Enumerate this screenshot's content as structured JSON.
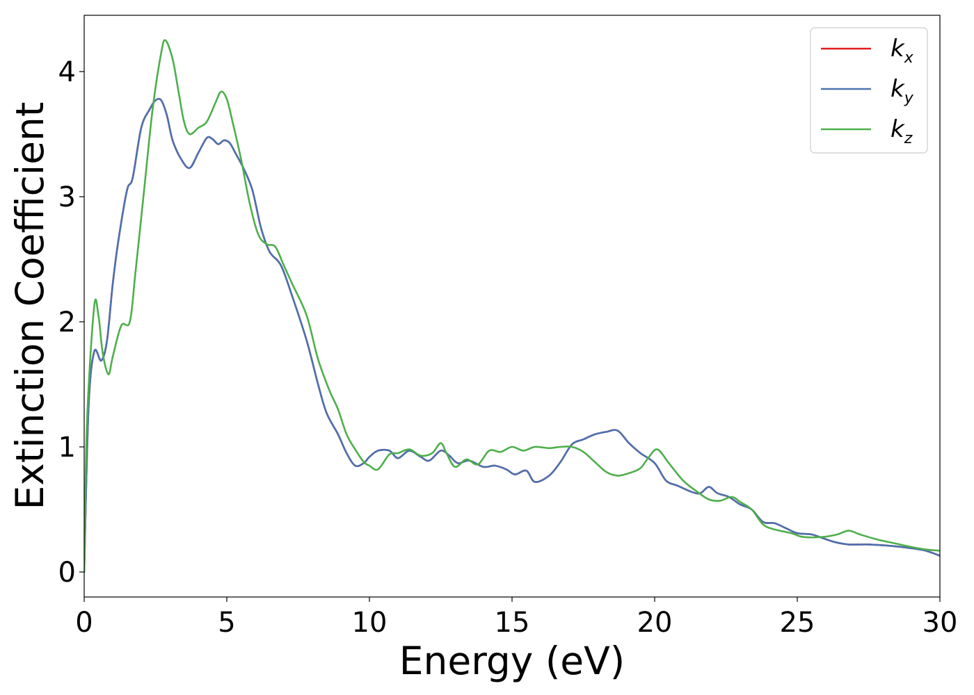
{
  "chart_data": {
    "type": "line",
    "title": "",
    "xlabel": "Energy (eV)",
    "ylabel": "Extinction Coefficient",
    "xlim": [
      0,
      30
    ],
    "ylim": [
      -0.2,
      4.45
    ],
    "xticks": [
      0,
      5,
      10,
      15,
      20,
      25,
      30
    ],
    "yticks": [
      0,
      1,
      2,
      3,
      4
    ],
    "xtick_labels": [
      "0",
      "5",
      "10",
      "15",
      "20",
      "25",
      "30"
    ],
    "ytick_labels": [
      "0",
      "1",
      "2",
      "3",
      "4"
    ],
    "grid": false,
    "legend_position": "top-right",
    "series": [
      {
        "name": "k_x",
        "legend_main": "k",
        "legend_sub": "x",
        "color": "#e41a1c",
        "points": [
          [
            0,
            0
          ],
          [
            0.15,
            1.3
          ],
          [
            0.35,
            1.76
          ],
          [
            0.6,
            1.69
          ],
          [
            0.8,
            1.85
          ],
          [
            1.0,
            2.3
          ],
          [
            1.2,
            2.65
          ],
          [
            1.5,
            3.05
          ],
          [
            1.7,
            3.15
          ],
          [
            2.0,
            3.55
          ],
          [
            2.3,
            3.7
          ],
          [
            2.5,
            3.77
          ],
          [
            2.7,
            3.77
          ],
          [
            2.9,
            3.65
          ],
          [
            3.1,
            3.45
          ],
          [
            3.4,
            3.3
          ],
          [
            3.7,
            3.23
          ],
          [
            4.0,
            3.35
          ],
          [
            4.3,
            3.47
          ],
          [
            4.5,
            3.46
          ],
          [
            4.7,
            3.42
          ],
          [
            4.9,
            3.45
          ],
          [
            5.1,
            3.43
          ],
          [
            5.3,
            3.35
          ],
          [
            5.6,
            3.22
          ],
          [
            5.9,
            3.05
          ],
          [
            6.2,
            2.75
          ],
          [
            6.5,
            2.56
          ],
          [
            6.9,
            2.45
          ],
          [
            7.3,
            2.2
          ],
          [
            7.8,
            1.85
          ],
          [
            8.2,
            1.5
          ],
          [
            8.5,
            1.27
          ],
          [
            8.9,
            1.1
          ],
          [
            9.2,
            0.95
          ],
          [
            9.5,
            0.85
          ],
          [
            9.8,
            0.87
          ],
          [
            10.0,
            0.92
          ],
          [
            10.3,
            0.97
          ],
          [
            10.7,
            0.97
          ],
          [
            11.0,
            0.91
          ],
          [
            11.4,
            0.97
          ],
          [
            11.8,
            0.92
          ],
          [
            12.1,
            0.89
          ],
          [
            12.5,
            0.97
          ],
          [
            12.8,
            0.93
          ],
          [
            13.1,
            0.87
          ],
          [
            13.5,
            0.89
          ],
          [
            14.0,
            0.84
          ],
          [
            14.4,
            0.85
          ],
          [
            14.8,
            0.82
          ],
          [
            15.1,
            0.78
          ],
          [
            15.5,
            0.81
          ],
          [
            15.8,
            0.72
          ],
          [
            16.3,
            0.77
          ],
          [
            16.7,
            0.88
          ],
          [
            17.1,
            1.02
          ],
          [
            17.5,
            1.06
          ],
          [
            17.9,
            1.1
          ],
          [
            18.3,
            1.12
          ],
          [
            18.7,
            1.13
          ],
          [
            19.1,
            1.03
          ],
          [
            19.5,
            0.95
          ],
          [
            20.0,
            0.87
          ],
          [
            20.4,
            0.73
          ],
          [
            20.8,
            0.69
          ],
          [
            21.3,
            0.64
          ],
          [
            21.6,
            0.63
          ],
          [
            21.9,
            0.68
          ],
          [
            22.2,
            0.63
          ],
          [
            22.6,
            0.6
          ],
          [
            23.0,
            0.54
          ],
          [
            23.4,
            0.5
          ],
          [
            23.8,
            0.4
          ],
          [
            24.2,
            0.39
          ],
          [
            24.6,
            0.35
          ],
          [
            25.0,
            0.31
          ],
          [
            25.5,
            0.3
          ],
          [
            25.9,
            0.27
          ],
          [
            26.3,
            0.24
          ],
          [
            26.8,
            0.22
          ],
          [
            27.5,
            0.22
          ],
          [
            28.2,
            0.21
          ],
          [
            29.0,
            0.19
          ],
          [
            29.5,
            0.17
          ],
          [
            30.0,
            0.13
          ]
        ]
      },
      {
        "name": "k_y",
        "legend_main": "k",
        "legend_sub": "y",
        "color": "#4a72b0",
        "points": [
          [
            0,
            0
          ],
          [
            0.15,
            1.3
          ],
          [
            0.35,
            1.76
          ],
          [
            0.6,
            1.69
          ],
          [
            0.8,
            1.85
          ],
          [
            1.0,
            2.3
          ],
          [
            1.2,
            2.65
          ],
          [
            1.5,
            3.05
          ],
          [
            1.7,
            3.15
          ],
          [
            2.0,
            3.55
          ],
          [
            2.3,
            3.7
          ],
          [
            2.5,
            3.77
          ],
          [
            2.7,
            3.77
          ],
          [
            2.9,
            3.65
          ],
          [
            3.1,
            3.45
          ],
          [
            3.4,
            3.3
          ],
          [
            3.7,
            3.23
          ],
          [
            4.0,
            3.35
          ],
          [
            4.3,
            3.47
          ],
          [
            4.5,
            3.46
          ],
          [
            4.7,
            3.42
          ],
          [
            4.9,
            3.45
          ],
          [
            5.1,
            3.43
          ],
          [
            5.3,
            3.35
          ],
          [
            5.6,
            3.22
          ],
          [
            5.9,
            3.05
          ],
          [
            6.2,
            2.75
          ],
          [
            6.5,
            2.56
          ],
          [
            6.9,
            2.45
          ],
          [
            7.3,
            2.2
          ],
          [
            7.8,
            1.85
          ],
          [
            8.2,
            1.5
          ],
          [
            8.5,
            1.27
          ],
          [
            8.9,
            1.1
          ],
          [
            9.2,
            0.95
          ],
          [
            9.5,
            0.85
          ],
          [
            9.8,
            0.87
          ],
          [
            10.0,
            0.92
          ],
          [
            10.3,
            0.97
          ],
          [
            10.7,
            0.97
          ],
          [
            11.0,
            0.91
          ],
          [
            11.4,
            0.97
          ],
          [
            11.8,
            0.92
          ],
          [
            12.1,
            0.89
          ],
          [
            12.5,
            0.97
          ],
          [
            12.8,
            0.93
          ],
          [
            13.1,
            0.87
          ],
          [
            13.5,
            0.89
          ],
          [
            14.0,
            0.84
          ],
          [
            14.4,
            0.85
          ],
          [
            14.8,
            0.82
          ],
          [
            15.1,
            0.78
          ],
          [
            15.5,
            0.81
          ],
          [
            15.8,
            0.72
          ],
          [
            16.3,
            0.77
          ],
          [
            16.7,
            0.88
          ],
          [
            17.1,
            1.02
          ],
          [
            17.5,
            1.06
          ],
          [
            17.9,
            1.1
          ],
          [
            18.3,
            1.12
          ],
          [
            18.7,
            1.13
          ],
          [
            19.1,
            1.03
          ],
          [
            19.5,
            0.95
          ],
          [
            20.0,
            0.87
          ],
          [
            20.4,
            0.73
          ],
          [
            20.8,
            0.69
          ],
          [
            21.3,
            0.64
          ],
          [
            21.6,
            0.63
          ],
          [
            21.9,
            0.68
          ],
          [
            22.2,
            0.63
          ],
          [
            22.6,
            0.6
          ],
          [
            23.0,
            0.54
          ],
          [
            23.4,
            0.5
          ],
          [
            23.8,
            0.4
          ],
          [
            24.2,
            0.39
          ],
          [
            24.6,
            0.35
          ],
          [
            25.0,
            0.31
          ],
          [
            25.5,
            0.3
          ],
          [
            25.9,
            0.27
          ],
          [
            26.3,
            0.24
          ],
          [
            26.8,
            0.22
          ],
          [
            27.5,
            0.22
          ],
          [
            28.2,
            0.21
          ],
          [
            29.0,
            0.19
          ],
          [
            29.5,
            0.17
          ],
          [
            30.0,
            0.13
          ]
        ]
      },
      {
        "name": "k_z",
        "legend_main": "k",
        "legend_sub": "z",
        "color": "#4daf4a",
        "points": [
          [
            0,
            0
          ],
          [
            0.1,
            1.2
          ],
          [
            0.35,
            2.12
          ],
          [
            0.5,
            2.05
          ],
          [
            0.65,
            1.75
          ],
          [
            0.85,
            1.58
          ],
          [
            1.0,
            1.72
          ],
          [
            1.3,
            1.97
          ],
          [
            1.6,
            2.0
          ],
          [
            1.8,
            2.4
          ],
          [
            2.1,
            3.05
          ],
          [
            2.4,
            3.7
          ],
          [
            2.7,
            4.15
          ],
          [
            2.85,
            4.25
          ],
          [
            3.1,
            4.1
          ],
          [
            3.3,
            3.85
          ],
          [
            3.5,
            3.6
          ],
          [
            3.7,
            3.5
          ],
          [
            4.0,
            3.55
          ],
          [
            4.3,
            3.6
          ],
          [
            4.6,
            3.75
          ],
          [
            4.8,
            3.84
          ],
          [
            5.0,
            3.78
          ],
          [
            5.2,
            3.6
          ],
          [
            5.5,
            3.3
          ],
          [
            5.8,
            2.95
          ],
          [
            6.1,
            2.7
          ],
          [
            6.4,
            2.62
          ],
          [
            6.7,
            2.6
          ],
          [
            7.0,
            2.45
          ],
          [
            7.3,
            2.3
          ],
          [
            7.8,
            2.05
          ],
          [
            8.2,
            1.7
          ],
          [
            8.6,
            1.45
          ],
          [
            8.9,
            1.3
          ],
          [
            9.2,
            1.1
          ],
          [
            9.5,
            0.98
          ],
          [
            9.8,
            0.88
          ],
          [
            10.0,
            0.85
          ],
          [
            10.3,
            0.82
          ],
          [
            10.7,
            0.94
          ],
          [
            11.0,
            0.95
          ],
          [
            11.4,
            0.98
          ],
          [
            11.8,
            0.93
          ],
          [
            12.2,
            0.95
          ],
          [
            12.5,
            1.03
          ],
          [
            12.7,
            0.95
          ],
          [
            13.0,
            0.84
          ],
          [
            13.4,
            0.9
          ],
          [
            13.8,
            0.86
          ],
          [
            14.2,
            0.97
          ],
          [
            14.6,
            0.96
          ],
          [
            15.0,
            1.0
          ],
          [
            15.4,
            0.97
          ],
          [
            15.8,
            1.0
          ],
          [
            16.3,
            0.99
          ],
          [
            16.7,
            1.0
          ],
          [
            17.1,
            1.0
          ],
          [
            17.5,
            0.96
          ],
          [
            17.9,
            0.88
          ],
          [
            18.3,
            0.8
          ],
          [
            18.7,
            0.77
          ],
          [
            19.1,
            0.79
          ],
          [
            19.5,
            0.83
          ],
          [
            19.8,
            0.92
          ],
          [
            20.1,
            0.98
          ],
          [
            20.5,
            0.87
          ],
          [
            21.0,
            0.73
          ],
          [
            21.5,
            0.64
          ],
          [
            21.9,
            0.58
          ],
          [
            22.3,
            0.57
          ],
          [
            22.7,
            0.6
          ],
          [
            23.0,
            0.56
          ],
          [
            23.4,
            0.5
          ],
          [
            23.8,
            0.38
          ],
          [
            24.2,
            0.34
          ],
          [
            24.8,
            0.31
          ],
          [
            25.2,
            0.28
          ],
          [
            25.9,
            0.28
          ],
          [
            26.4,
            0.3
          ],
          [
            26.8,
            0.33
          ],
          [
            27.2,
            0.3
          ],
          [
            27.8,
            0.26
          ],
          [
            28.4,
            0.23
          ],
          [
            29.0,
            0.2
          ],
          [
            29.5,
            0.18
          ],
          [
            30.0,
            0.17
          ]
        ]
      }
    ]
  }
}
